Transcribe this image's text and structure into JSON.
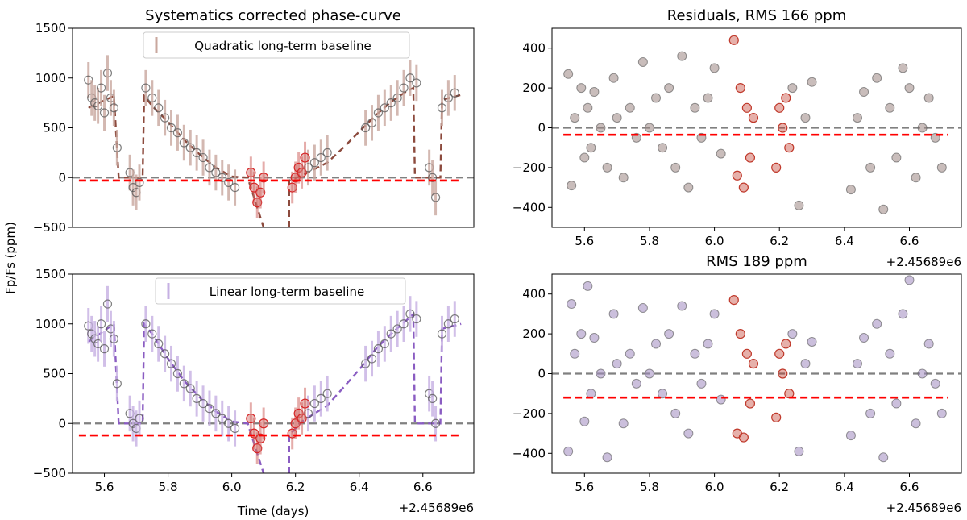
{
  "chart_data": [
    {
      "id": "p1",
      "type": "scatter",
      "title": "Systematics corrected phase-curve",
      "xlabel": "",
      "ylabel": "",
      "xlim": [
        5.5,
        6.76
      ],
      "ylim": [
        -500,
        1500
      ],
      "yticks": [
        -500,
        0,
        500,
        1000,
        1500
      ],
      "ytick_labels": [
        "−500",
        "0",
        "500",
        "1000",
        "1500"
      ],
      "xticks": [],
      "xtick_labels": [],
      "offset_text": "",
      "legend": {
        "label": "Quadratic long-term baseline",
        "location": "top-center"
      },
      "colors": {
        "model": "#8c4a3d",
        "errbar": "#c9a79e",
        "secondary": "#d62728",
        "eclipse_marker": "#d06a66",
        "zero": "#808080",
        "baseline": "#ff0000"
      },
      "zero_line": 0,
      "baseline_level": -30,
      "series": [
        {
          "name": "phase model",
          "style": "dashed",
          "x": [
            5.55,
            5.63,
            5.645,
            5.645,
            5.72,
            5.725,
            5.75,
            5.8,
            5.85,
            5.9,
            5.95,
            6.0,
            6.05,
            6.1,
            6.1,
            6.18,
            6.18,
            6.22,
            6.3,
            6.35,
            6.4,
            6.45,
            6.5,
            6.55,
            6.57,
            6.575,
            6.58,
            6.655,
            6.66,
            6.72
          ],
          "y": [
            700,
            820,
            0,
            0,
            0,
            820,
            720,
            560,
            380,
            230,
            100,
            10,
            0,
            -500,
            null,
            -500,
            -30,
            20,
            150,
            300,
            460,
            620,
            760,
            870,
            900,
            0,
            0,
            0,
            780,
            830
          ]
        },
        {
          "name": "data",
          "style": "open-circles",
          "color": "#555555",
          "x": [
            5.55,
            5.56,
            5.57,
            5.58,
            5.59,
            5.6,
            5.61,
            5.62,
            5.63,
            5.64,
            5.68,
            5.69,
            5.7,
            5.71,
            5.73,
            5.75,
            5.77,
            5.79,
            5.81,
            5.83,
            5.85,
            5.87,
            5.89,
            5.91,
            5.93,
            5.95,
            5.97,
            5.99,
            6.01,
            6.24,
            6.26,
            6.28,
            6.3,
            6.42,
            6.44,
            6.46,
            6.48,
            6.5,
            6.52,
            6.54,
            6.56,
            6.58,
            6.62,
            6.63,
            6.64,
            6.66,
            6.68,
            6.7
          ],
          "y": [
            980,
            800,
            750,
            720,
            900,
            650,
            1050,
            800,
            700,
            300,
            50,
            -100,
            -150,
            -50,
            900,
            800,
            700,
            600,
            500,
            450,
            350,
            300,
            250,
            200,
            100,
            50,
            0,
            -50,
            -100,
            100,
            150,
            200,
            250,
            500,
            550,
            650,
            700,
            750,
            800,
            900,
            1000,
            950,
            100,
            0,
            -200,
            700,
            800,
            850
          ]
        },
        {
          "name": "secondary eclipse",
          "style": "red-circles",
          "x": [
            6.06,
            6.07,
            6.08,
            6.09,
            6.1,
            6.19,
            6.2,
            6.21,
            6.22,
            6.23
          ],
          "y": [
            50,
            -100,
            -250,
            -150,
            0,
            -100,
            0,
            100,
            50,
            200
          ]
        }
      ]
    },
    {
      "id": "p2",
      "type": "scatter",
      "title": "Residuals, RMS 166 ppm",
      "xlabel": "",
      "ylabel": "",
      "xlim": [
        5.5,
        6.76
      ],
      "ylim": [
        -500,
        500
      ],
      "yticks": [
        -400,
        -200,
        0,
        200,
        400
      ],
      "ytick_labels": [
        "−400",
        "−200",
        "0",
        "200",
        "400"
      ],
      "xticks": [
        5.6,
        5.8,
        6.0,
        6.2,
        6.4,
        6.6
      ],
      "xtick_labels": [
        "5.6",
        "5.8",
        "6.0",
        "6.2",
        "6.4",
        "6.6"
      ],
      "offset_text": "+2.45689e6",
      "legend": null,
      "colors": {
        "points": "#9c8683",
        "secondary": "#c0392b",
        "zero": "#808080",
        "baseline": "#ff0000"
      },
      "zero_line": 0,
      "baseline_level": -35,
      "series": [
        {
          "name": "residuals",
          "style": "filled-circles",
          "x": [
            5.55,
            5.56,
            5.57,
            5.59,
            5.6,
            5.61,
            5.62,
            5.63,
            5.65,
            5.67,
            5.69,
            5.7,
            5.72,
            5.74,
            5.76,
            5.78,
            5.8,
            5.82,
            5.84,
            5.86,
            5.88,
            5.9,
            5.92,
            5.94,
            5.96,
            5.98,
            6.0,
            6.02,
            6.24,
            6.26,
            6.28,
            6.3,
            6.42,
            6.44,
            6.46,
            6.48,
            6.5,
            6.52,
            6.54,
            6.56,
            6.58,
            6.6,
            6.62,
            6.64,
            6.66,
            6.68,
            6.7
          ],
          "y": [
            270,
            -290,
            50,
            200,
            -150,
            100,
            -100,
            180,
            0,
            -200,
            250,
            50,
            -250,
            100,
            -50,
            330,
            0,
            150,
            -100,
            200,
            -200,
            360,
            -300,
            100,
            -50,
            150,
            300,
            -130,
            200,
            -390,
            50,
            230,
            -310,
            50,
            180,
            -200,
            250,
            -410,
            100,
            -150,
            300,
            200,
            -250,
            0,
            150,
            -50,
            -200
          ]
        },
        {
          "name": "secondary eclipse residuals",
          "style": "red-circles",
          "x": [
            6.06,
            6.07,
            6.08,
            6.09,
            6.1,
            6.11,
            6.12,
            6.19,
            6.2,
            6.21,
            6.22,
            6.23
          ],
          "y": [
            440,
            -240,
            200,
            -300,
            100,
            -150,
            50,
            -200,
            100,
            0,
            150,
            -100
          ]
        }
      ]
    },
    {
      "id": "p3",
      "type": "scatter",
      "title": "",
      "xlabel": "Time (days)",
      "ylabel": "Fp/Fs (ppm)",
      "xlim": [
        5.5,
        6.76
      ],
      "ylim": [
        -500,
        1500
      ],
      "yticks": [
        -500,
        0,
        500,
        1000,
        1500
      ],
      "ytick_labels": [
        "−500",
        "0",
        "500",
        "1000",
        "1500"
      ],
      "xticks": [
        5.6,
        5.8,
        6.0,
        6.2,
        6.4,
        6.6
      ],
      "xtick_labels": [
        "5.6",
        "5.8",
        "6.0",
        "6.2",
        "6.4",
        "6.6"
      ],
      "offset_text": "+2.45689e6",
      "legend": {
        "label": "Linear long-term baseline",
        "location": "top-center"
      },
      "colors": {
        "model": "#8a5cc2",
        "errbar": "#c6b0e3",
        "secondary": "#d62728",
        "eclipse_marker": "#d06a66",
        "zero": "#808080",
        "baseline": "#ff0000"
      },
      "zero_line": 0,
      "baseline_level": -120,
      "series": [
        {
          "name": "phase model",
          "style": "dashed",
          "x": [
            5.55,
            5.63,
            5.645,
            5.645,
            5.72,
            5.725,
            5.75,
            5.8,
            5.85,
            5.9,
            5.95,
            6.0,
            6.05,
            6.1,
            6.1,
            6.18,
            6.18,
            6.22,
            6.3,
            6.35,
            6.4,
            6.45,
            6.5,
            6.55,
            6.57,
            6.575,
            6.58,
            6.655,
            6.66,
            6.72
          ],
          "y": [
            820,
            1000,
            0,
            0,
            0,
            1000,
            900,
            650,
            430,
            260,
            120,
            20,
            0,
            -500,
            null,
            -500,
            -120,
            20,
            180,
            360,
            540,
            740,
            900,
            1040,
            1100,
            0,
            0,
            0,
            950,
            1000
          ]
        },
        {
          "name": "data",
          "style": "open-circles",
          "color": "#555555",
          "x": [
            5.55,
            5.56,
            5.57,
            5.58,
            5.59,
            5.6,
            5.61,
            5.62,
            5.63,
            5.64,
            5.68,
            5.69,
            5.7,
            5.71,
            5.73,
            5.75,
            5.77,
            5.79,
            5.81,
            5.83,
            5.85,
            5.87,
            5.89,
            5.91,
            5.93,
            5.95,
            5.97,
            5.99,
            6.01,
            6.24,
            6.26,
            6.28,
            6.3,
            6.42,
            6.44,
            6.46,
            6.48,
            6.5,
            6.52,
            6.54,
            6.56,
            6.58,
            6.62,
            6.63,
            6.64,
            6.66,
            6.68,
            6.7
          ],
          "y": [
            980,
            900,
            850,
            800,
            1000,
            750,
            1200,
            950,
            850,
            400,
            100,
            0,
            -50,
            50,
            1000,
            900,
            800,
            700,
            600,
            500,
            400,
            350,
            250,
            200,
            150,
            100,
            50,
            0,
            -50,
            100,
            200,
            250,
            300,
            600,
            650,
            750,
            800,
            900,
            950,
            1000,
            1100,
            1050,
            300,
            250,
            0,
            900,
            1000,
            1050
          ]
        },
        {
          "name": "secondary eclipse",
          "style": "red-circles",
          "x": [
            6.06,
            6.07,
            6.08,
            6.09,
            6.1,
            6.19,
            6.2,
            6.21,
            6.22,
            6.23
          ],
          "y": [
            50,
            -100,
            -250,
            -150,
            0,
            -100,
            0,
            100,
            50,
            200
          ]
        }
      ]
    },
    {
      "id": "p4",
      "type": "scatter",
      "title": "RMS 189 ppm",
      "xlabel": "",
      "ylabel": "",
      "xlim": [
        5.5,
        6.76
      ],
      "ylim": [
        -500,
        500
      ],
      "yticks": [
        -400,
        -200,
        0,
        200,
        400
      ],
      "ytick_labels": [
        "−400",
        "−200",
        "0",
        "200",
        "400"
      ],
      "xticks": [
        5.6,
        5.8,
        6.0,
        6.2,
        6.4,
        6.6
      ],
      "xtick_labels": [
        "5.6",
        "5.8",
        "6.0",
        "6.2",
        "6.4",
        "6.6"
      ],
      "offset_text": "+2.45689e6",
      "legend": null,
      "colors": {
        "points": "#a08bbf",
        "secondary": "#c0392b",
        "zero": "#808080",
        "baseline": "#ff0000"
      },
      "zero_line": 0,
      "baseline_level": -120,
      "series": [
        {
          "name": "residuals",
          "style": "filled-circles",
          "x": [
            5.55,
            5.56,
            5.57,
            5.59,
            5.6,
            5.61,
            5.62,
            5.63,
            5.65,
            5.67,
            5.69,
            5.7,
            5.72,
            5.74,
            5.76,
            5.78,
            5.8,
            5.82,
            5.84,
            5.86,
            5.88,
            5.9,
            5.92,
            5.94,
            5.96,
            5.98,
            6.0,
            6.02,
            6.24,
            6.26,
            6.28,
            6.3,
            6.42,
            6.44,
            6.46,
            6.48,
            6.5,
            6.52,
            6.54,
            6.56,
            6.58,
            6.6,
            6.62,
            6.64,
            6.66,
            6.68,
            6.7
          ],
          "y": [
            -390,
            350,
            100,
            200,
            -240,
            440,
            -100,
            180,
            0,
            -420,
            300,
            50,
            -250,
            100,
            -50,
            330,
            0,
            150,
            -100,
            200,
            -200,
            340,
            -300,
            100,
            -50,
            150,
            300,
            -130,
            200,
            -390,
            50,
            160,
            -310,
            50,
            180,
            -200,
            250,
            -420,
            100,
            -150,
            300,
            470,
            -250,
            0,
            150,
            -50,
            -200
          ]
        },
        {
          "name": "secondary eclipse residuals",
          "style": "red-circles",
          "x": [
            6.06,
            6.07,
            6.08,
            6.09,
            6.1,
            6.11,
            6.12,
            6.19,
            6.2,
            6.21,
            6.22,
            6.23
          ],
          "y": [
            370,
            -300,
            200,
            -320,
            100,
            -150,
            50,
            -220,
            100,
            0,
            150,
            -100
          ]
        }
      ]
    }
  ]
}
